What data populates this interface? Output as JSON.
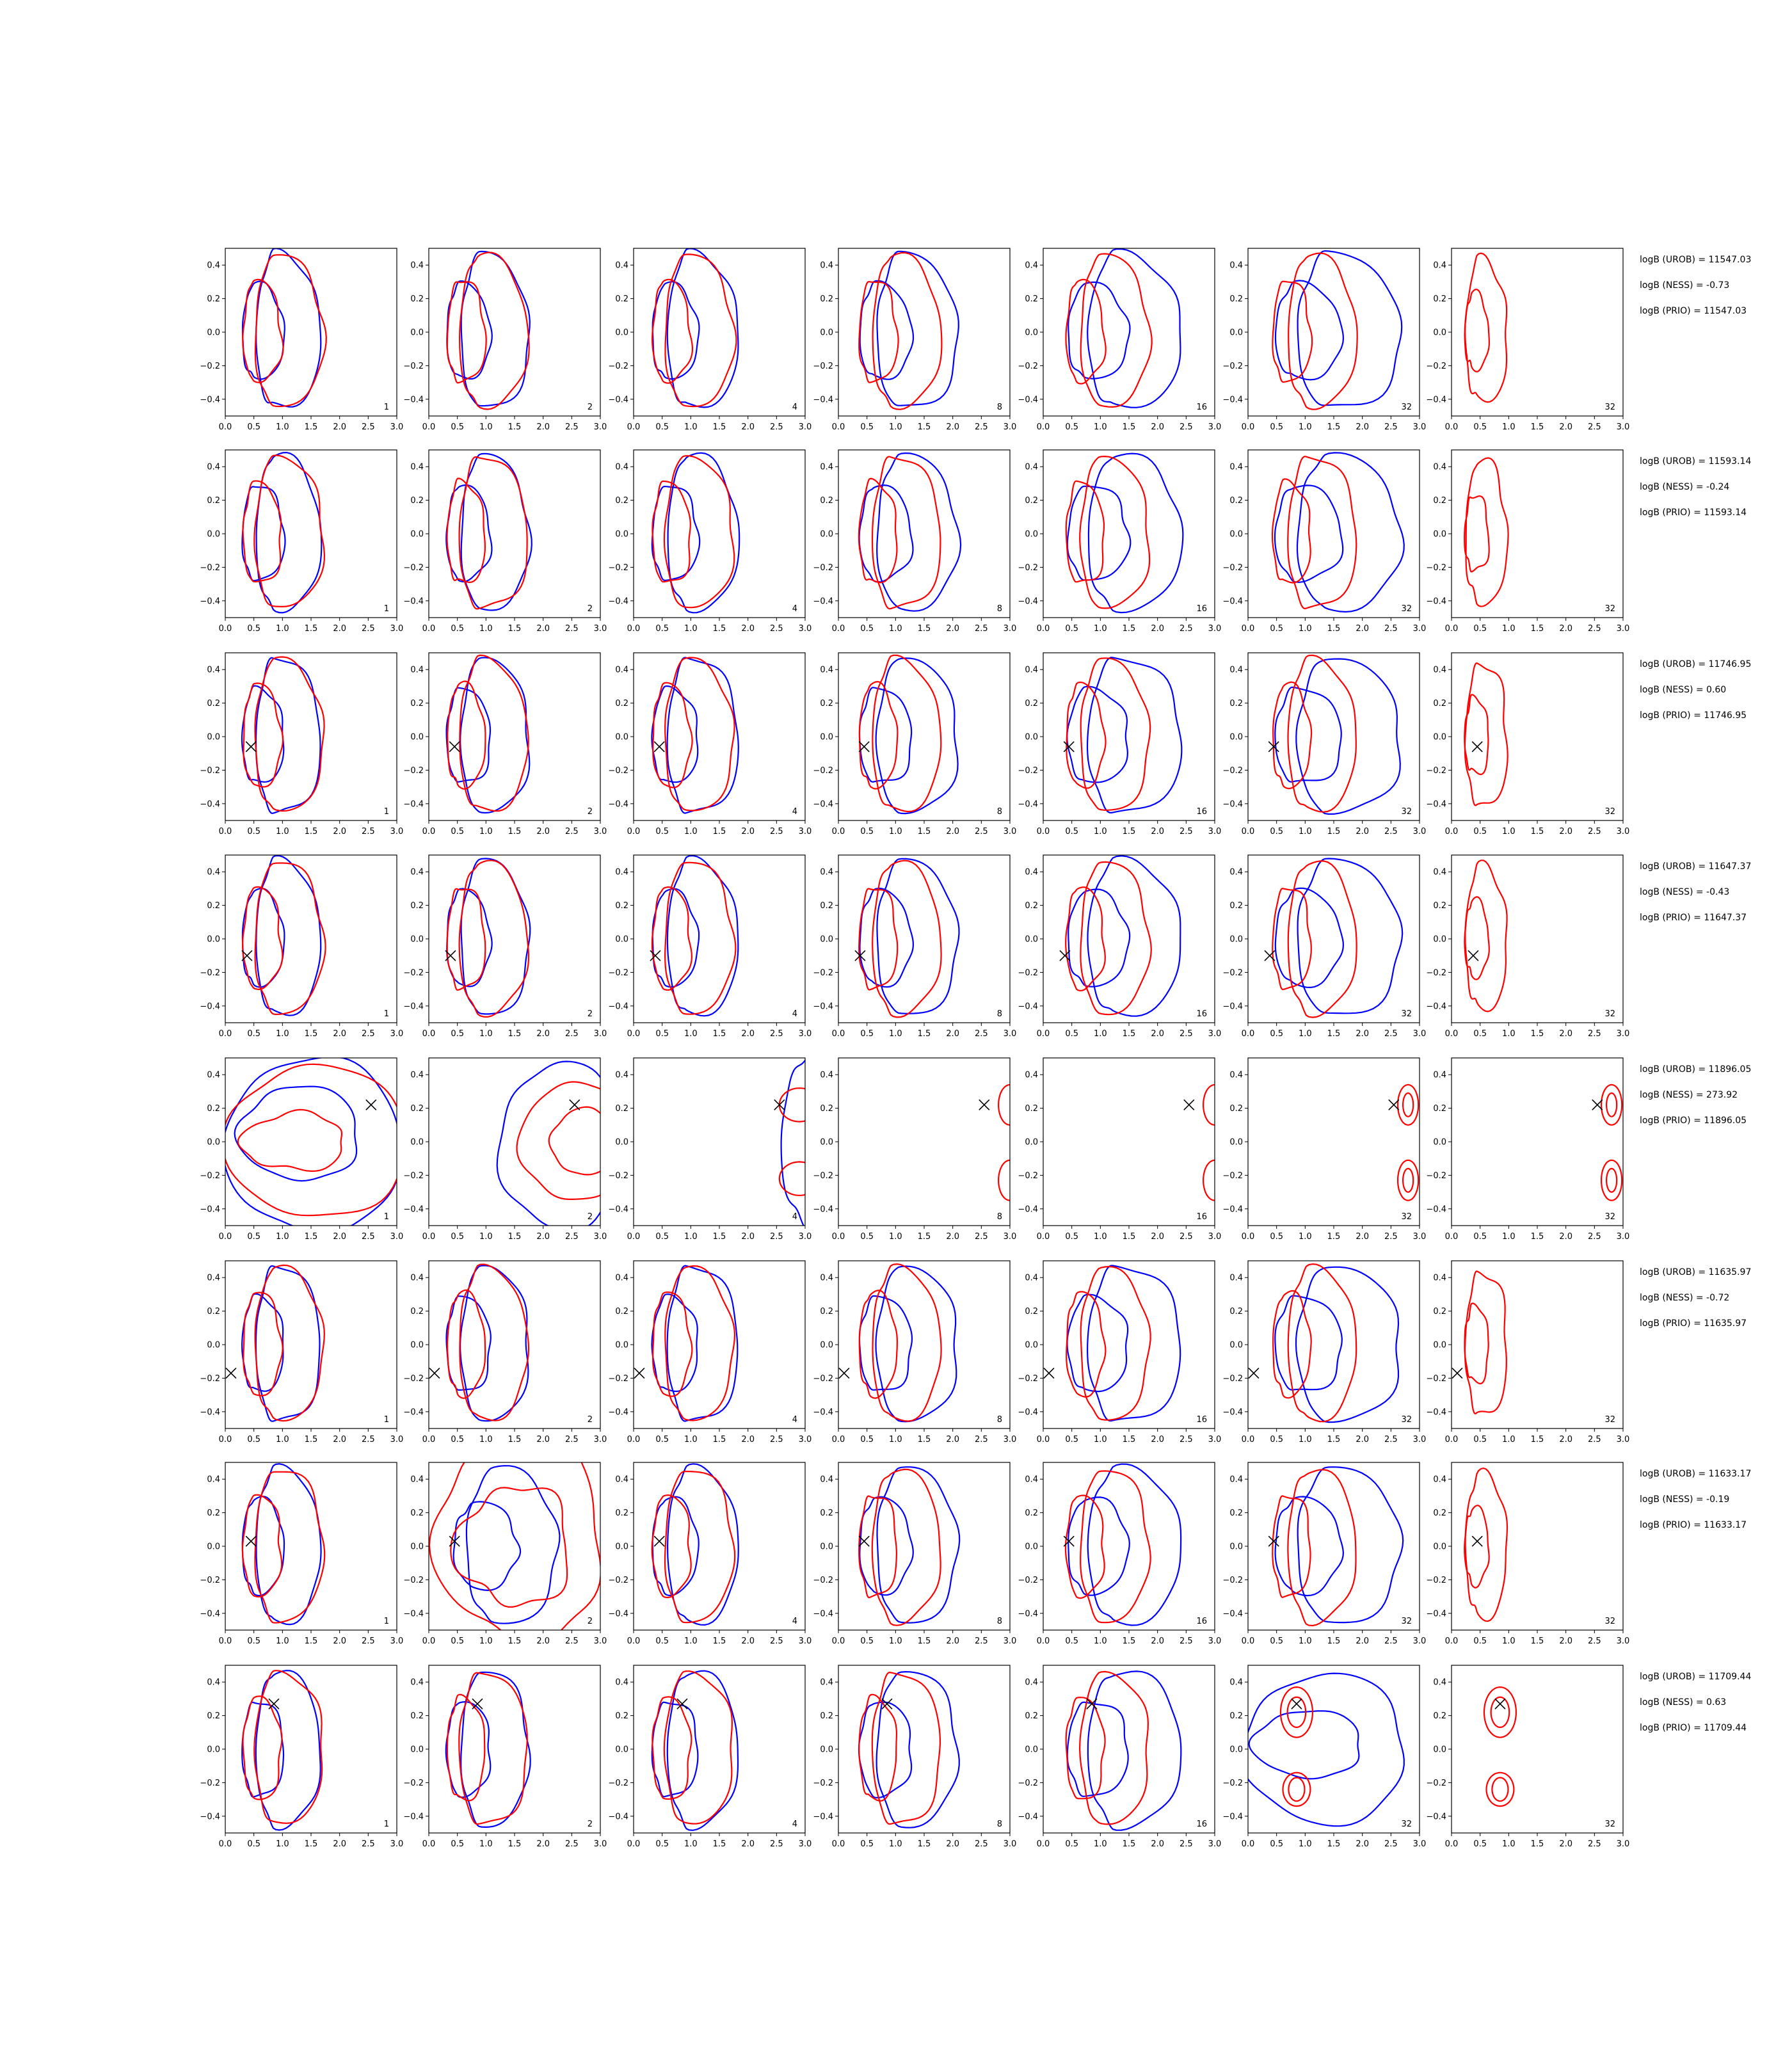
{
  "chart_data": {
    "type": "contour-grid",
    "x_ticks": [
      "0.0",
      "0.5",
      "1.0",
      "1.5",
      "2.0",
      "2.5",
      "3.0"
    ],
    "y_ticks": [
      "0.4",
      "0.2",
      "0.0",
      "−0.2",
      "−0.4"
    ],
    "xlim": [
      0,
      3
    ],
    "ylim": [
      -0.5,
      0.5
    ],
    "colors": {
      "series_a": "#0000ff",
      "series_b": "#ff0000"
    },
    "panel_labels": [
      "1",
      "2",
      "4",
      "8",
      "16",
      "32",
      "32"
    ],
    "rows": [
      {
        "stats": [
          "logB (UROB) = 11547.03",
          "logB (NESS) = -0.73",
          "logB (PRIO) = 11547.03"
        ],
        "marker": null,
        "kind": "std"
      },
      {
        "stats": [
          "logB (UROB) = 11593.14",
          "logB (NESS) = -0.24",
          "logB (PRIO) = 11593.14"
        ],
        "marker": null,
        "kind": "std"
      },
      {
        "stats": [
          "logB (UROB) = 11746.95",
          "logB (NESS) = 0.60",
          "logB (PRIO) = 11746.95"
        ],
        "marker": [
          0.45,
          -0.06
        ],
        "kind": "std"
      },
      {
        "stats": [
          "logB (UROB) = 11647.37",
          "logB (NESS) = -0.43",
          "logB (PRIO) = 11647.37"
        ],
        "marker": [
          0.38,
          -0.1
        ],
        "kind": "std"
      },
      {
        "stats": [
          "logB (UROB) = 11896.05",
          "logB (NESS) = 273.92",
          "logB (PRIO) = 11896.05"
        ],
        "marker": [
          2.55,
          0.22
        ],
        "kind": "shift"
      },
      {
        "stats": [
          "logB (UROB) = 11635.97",
          "logB (NESS) = -0.72",
          "logB (PRIO) = 11635.97"
        ],
        "marker": [
          0.1,
          -0.17
        ],
        "kind": "std"
      },
      {
        "stats": [
          "logB (UROB) = 11633.17",
          "logB (NESS) = -0.19",
          "logB (PRIO) = 11633.17"
        ],
        "marker": [
          0.45,
          0.03
        ],
        "kind": "wide"
      },
      {
        "stats": [
          "logB (UROB) = 11709.44",
          "logB (NESS) = 0.63",
          "logB (PRIO) = 11709.44"
        ],
        "marker": [
          0.85,
          0.27
        ],
        "kind": "bimodal"
      }
    ]
  }
}
